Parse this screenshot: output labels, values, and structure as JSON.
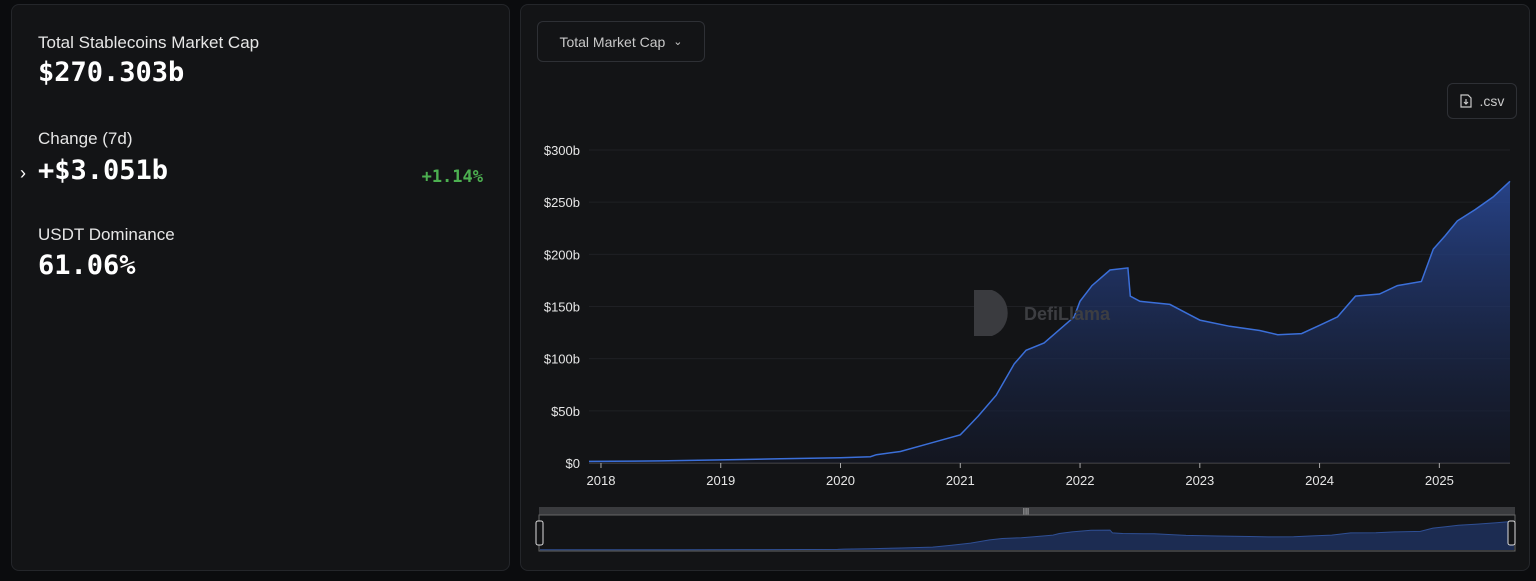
{
  "stats": {
    "total_label": "Total Stablecoins Market Cap",
    "total_value": "$270.303b",
    "change_label": "Change (7d)",
    "change_value": "+$3.051b",
    "change_pct": "+1.14%",
    "dominance_label": "USDT Dominance",
    "dominance_value": "61.06%"
  },
  "controls": {
    "metric_select": "Total Market Cap",
    "csv_button": ".csv"
  },
  "watermark": "DefiLlama",
  "colors": {
    "line": "#3b6fd9",
    "positive": "#4caf50"
  },
  "chart_data": {
    "type": "area",
    "title": "Total Market Cap",
    "xlabel": "",
    "ylabel": "",
    "xlim": [
      2017.9,
      2025.59
    ],
    "ylim": [
      0,
      300
    ],
    "grid": true,
    "x_ticks": [
      "2018",
      "2019",
      "2020",
      "2021",
      "2022",
      "2023",
      "2024",
      "2025"
    ],
    "y_ticks": [
      "$0",
      "$50b",
      "$100b",
      "$150b",
      "$200b",
      "$250b",
      "$300b"
    ],
    "series": [
      {
        "name": "Total Market Cap (billions USD)",
        "x": [
          2017.9,
          2018.5,
          2019,
          2019.5,
          2020,
          2020.25,
          2020.3,
          2020.5,
          2020.75,
          2021,
          2021.05,
          2021.15,
          2021.3,
          2021.45,
          2021.55,
          2021.7,
          2021.8,
          2021.95,
          2022.0,
          2022.1,
          2022.25,
          2022.4,
          2022.42,
          2022.5,
          2022.75,
          2022.9,
          2023.0,
          2023.25,
          2023.5,
          2023.65,
          2023.85,
          2024.0,
          2024.15,
          2024.3,
          2024.5,
          2024.65,
          2024.85,
          2024.95,
          2025.05,
          2025.15,
          2025.3,
          2025.45,
          2025.59
        ],
        "values": [
          1.5,
          2,
          3,
          4,
          5,
          6,
          8,
          11,
          19,
          27,
          33,
          45,
          65,
          95,
          108,
          115,
          125,
          140,
          155,
          170,
          185,
          187,
          160,
          155,
          152,
          143,
          137,
          131,
          127,
          123,
          124,
          132,
          140,
          160,
          162,
          170,
          174,
          205,
          218,
          232,
          243,
          255,
          270
        ]
      }
    ]
  }
}
